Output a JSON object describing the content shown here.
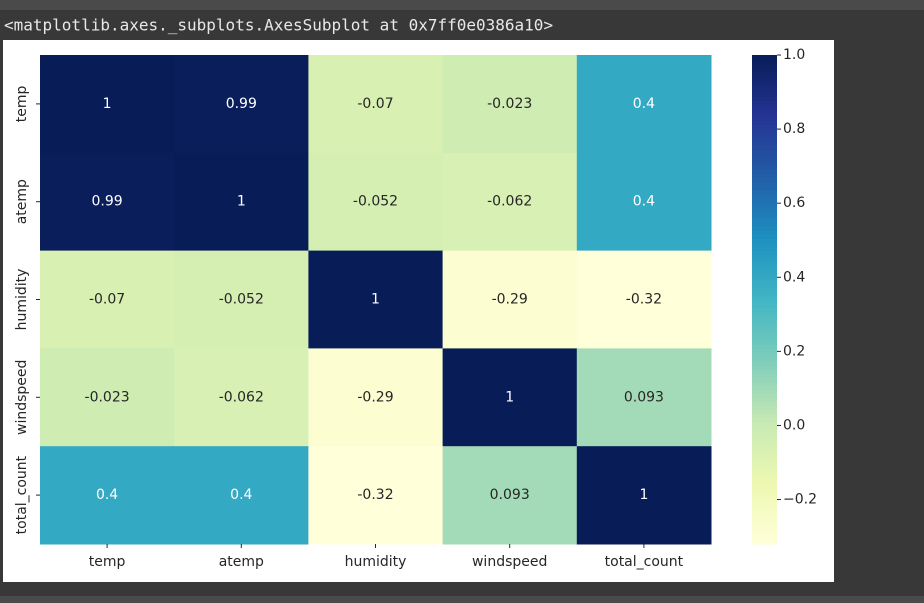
{
  "output_text": "<matplotlib.axes._subplots.AxesSubplot at 0x7ff0e0386a10>",
  "chart_data": {
    "type": "heatmap",
    "categories": [
      "temp",
      "atemp",
      "humidity",
      "windspeed",
      "total_count"
    ],
    "values": [
      [
        1,
        0.99,
        -0.07,
        -0.023,
        0.4
      ],
      [
        0.99,
        1,
        -0.052,
        -0.062,
        0.4
      ],
      [
        -0.07,
        -0.052,
        1,
        -0.29,
        -0.32
      ],
      [
        -0.023,
        -0.062,
        -0.29,
        1,
        0.093
      ],
      [
        0.4,
        0.4,
        -0.32,
        0.093,
        1
      ]
    ],
    "colorscale": [
      "#ffffd9",
      "#edf8b1",
      "#c7e9b4",
      "#7fcdbb",
      "#41b6c4",
      "#1d91c0",
      "#225ea8",
      "#253494",
      "#081d58"
    ],
    "clim": [
      -0.32,
      1
    ],
    "cticks": [
      {
        "value": -0.2,
        "label": "−0.2"
      },
      {
        "value": 0,
        "label": "0.0"
      },
      0.2,
      0.4,
      0.6,
      0.8,
      {
        "value": 1,
        "label": "1.0"
      }
    ]
  }
}
